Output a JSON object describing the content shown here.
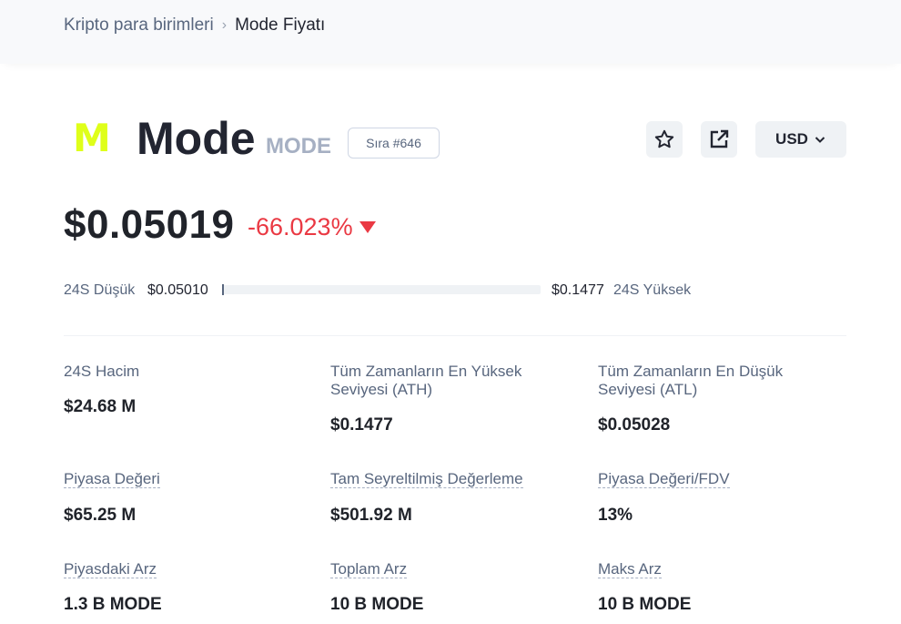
{
  "breadcrumb": {
    "parent": "Kripto para birimleri",
    "separator": "›",
    "current": "Mode Fiyatı"
  },
  "coin": {
    "logo_letter": "M",
    "logo_color": "#dfff1a",
    "name": "Mode",
    "symbol": "MODE",
    "rank": "Sıra #646"
  },
  "actions": {
    "star_icon": "star-icon",
    "share_icon": "share-icon",
    "currency": "USD"
  },
  "price": {
    "value": "$0.05019",
    "change": "-66.023%",
    "change_color": "#ea3943",
    "direction": "down"
  },
  "range24h": {
    "low_label": "24S Düşük",
    "low_value": "$0.05010",
    "high_value": "$0.1477",
    "high_label": "24S Yüksek",
    "position_fraction": 0.0
  },
  "stats": [
    {
      "label": "24S Hacim",
      "value": "$24.68 M",
      "dotted": false
    },
    {
      "label": "Tüm Zamanların En Yüksek Seviyesi (ATH)",
      "value": "$0.1477",
      "dotted": false
    },
    {
      "label": "Tüm Zamanların En Düşük Seviyesi (ATL)",
      "value": "$0.05028",
      "dotted": false
    },
    {
      "label": "Piyasa Değeri",
      "value": "$65.25 M",
      "dotted": true
    },
    {
      "label": "Tam Seyreltilmiş Değerleme",
      "value": "$501.92 M",
      "dotted": true
    },
    {
      "label": "Piyasa Değeri/FDV",
      "value": "13%",
      "dotted": true
    },
    {
      "label": "Piyasdaki Arz",
      "value": "1.3 B MODE",
      "dotted": true
    },
    {
      "label": "Toplam Arz",
      "value": "10 B MODE",
      "dotted": true
    },
    {
      "label": "Maks Arz",
      "value": "10 B MODE",
      "dotted": true
    }
  ]
}
